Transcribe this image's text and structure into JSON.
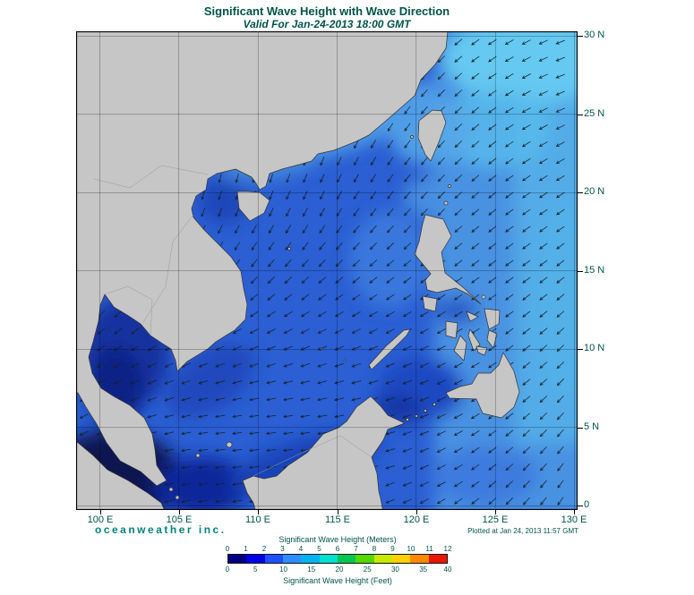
{
  "title": "Significant Wave Height with Wave Direction",
  "subtitle": "Valid For Jan-24-2013 18:00 GMT",
  "branding": "oceanweather inc.",
  "plotted_at": "Plotted at Jan 24, 2013 11:57 GMT",
  "colors": {
    "text": "#00544a",
    "brand": "#00857c",
    "land": "#c6c6c6",
    "sea_base": "#2b5fd3",
    "arrow": "#14222b"
  },
  "axes": {
    "lat_ticks": [
      "30 N",
      "25 N",
      "20 N",
      "15 N",
      "10 N",
      "5 N",
      "0"
    ],
    "lon_ticks": [
      "100 E",
      "105 E",
      "110 E",
      "115 E",
      "120 E",
      "125 E",
      "130 E"
    ]
  },
  "colorbar": {
    "title_meters": "Significant Wave Height (Meters)",
    "title_feet": "Significant Wave Height (Feet)",
    "meter_ticks": [
      "0",
      "1",
      "2",
      "3",
      "4",
      "5",
      "6",
      "7",
      "8",
      "9",
      "10",
      "11",
      "12"
    ],
    "feet_ticks": [
      "0",
      "5",
      "10",
      "15",
      "20",
      "25",
      "30",
      "35",
      "40"
    ],
    "segment_colors": [
      "#000082",
      "#0000e8",
      "#1e50ff",
      "#2f8cff",
      "#00b4f0",
      "#00e0d0",
      "#00c850",
      "#54d800",
      "#c8e800",
      "#ffd200",
      "#ff8800",
      "#e81800"
    ]
  }
}
